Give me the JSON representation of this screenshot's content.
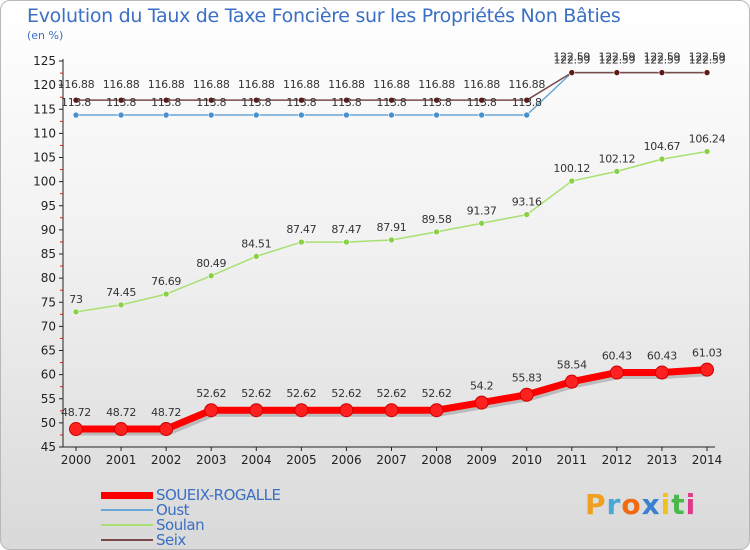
{
  "header": {
    "title": "Evolution du Taux de Taxe Foncière sur les Propriétés Non Bâties",
    "subtitle": "(en %)"
  },
  "logo": {
    "letters": [
      "P",
      "r",
      "o",
      "x",
      "i",
      "t",
      "i"
    ],
    "colors": [
      "#f0a020",
      "#4aa8d8",
      "#f06a10",
      "#3a7fd0",
      "#f0c020",
      "#48b848",
      "#e03a8a"
    ]
  },
  "chart_data": {
    "type": "line",
    "title": "Evolution du Taux de Taxe Foncière sur les Propriétés Non Bâties",
    "ylabel": "(en %)",
    "xlabel": "",
    "ylim": [
      45,
      125
    ],
    "yticks": [
      45,
      50,
      55,
      60,
      65,
      70,
      75,
      80,
      85,
      90,
      95,
      100,
      105,
      110,
      115,
      120,
      125
    ],
    "grid": false,
    "legend_position": "bottom-left",
    "x": [
      "2000",
      "2001",
      "2002",
      "2003",
      "2004",
      "2005",
      "2006",
      "2007",
      "2008",
      "2009",
      "2010",
      "2011",
      "2012",
      "2013",
      "2014"
    ],
    "series": [
      {
        "name": "SOUEIX-ROGALLE",
        "color": "#ff0000",
        "marker_color": "#ff2020",
        "values": [
          48.72,
          48.72,
          48.72,
          52.62,
          52.62,
          52.62,
          52.62,
          52.62,
          52.62,
          54.2,
          55.83,
          58.54,
          60.43,
          60.43,
          61.03
        ],
        "labels": [
          "48.72",
          "48.72",
          "48.72",
          "52.62",
          "52.62",
          "52.62",
          "52.62",
          "52.62",
          "52.62",
          "54.2",
          "55.83",
          "58.54",
          "60.43",
          "60.43",
          "61.03"
        ]
      },
      {
        "name": "Oust",
        "color": "#6aa6d6",
        "marker_color": "#4a90d0",
        "values": [
          113.8,
          113.8,
          113.8,
          113.8,
          113.8,
          113.8,
          113.8,
          113.8,
          113.8,
          113.8,
          113.8,
          122.59,
          122.59,
          122.59,
          122.59
        ],
        "labels": [
          "113.8",
          "113.8",
          "113.8",
          "113.8",
          "113.8",
          "113.8",
          "113.8",
          "113.8",
          "113.8",
          "113.8",
          "113.8",
          "122.59",
          "122.59",
          "122.59",
          "122.59"
        ]
      },
      {
        "name": "Soulan",
        "color": "#a8e070",
        "marker_color": "#88d048",
        "values": [
          73,
          74.45,
          76.69,
          80.49,
          84.51,
          87.47,
          87.47,
          87.91,
          89.58,
          91.37,
          93.16,
          100.12,
          102.12,
          104.67,
          106.24
        ],
        "labels": [
          "73",
          "74.45",
          "76.69",
          "80.49",
          "84.51",
          "87.47",
          "87.47",
          "87.91",
          "89.58",
          "91.37",
          "93.16",
          "100.12",
          "102.12",
          "104.67",
          "106.24"
        ]
      },
      {
        "name": "Seix",
        "color": "#7a4a4a",
        "marker_color": "#601818",
        "values": [
          116.88,
          116.88,
          116.88,
          116.88,
          116.88,
          116.88,
          116.88,
          116.88,
          116.88,
          116.88,
          116.88,
          122.59,
          122.59,
          122.59,
          122.59
        ],
        "labels": [
          "116.88",
          "116.88",
          "116.88",
          "116.88",
          "116.88",
          "116.88",
          "116.88",
          "116.88",
          "116.88",
          "116.88",
          "116.88",
          "122.59",
          "122.59",
          "122.59",
          "122.59"
        ]
      }
    ]
  }
}
